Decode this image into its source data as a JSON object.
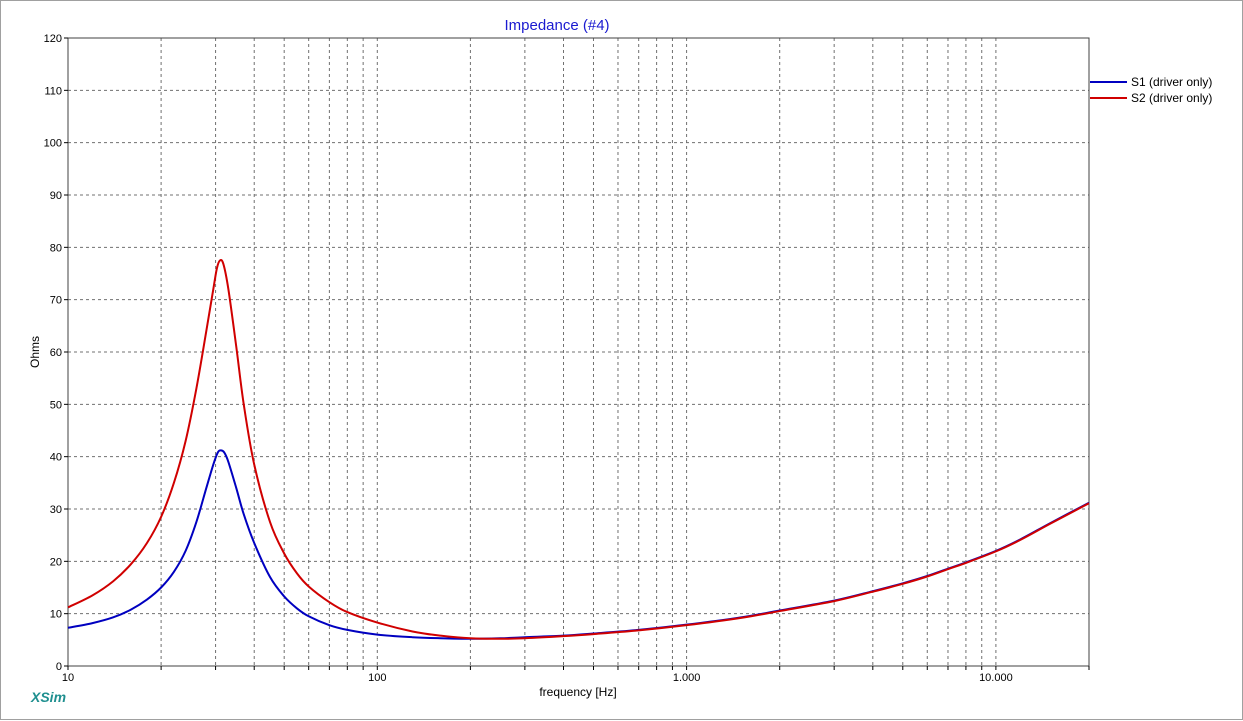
{
  "chart_data": {
    "type": "line",
    "title": "Impedance (#4)",
    "xlabel": "frequency [Hz]",
    "ylabel": "Ohms",
    "x_scale": "log",
    "xlim": [
      10,
      20000
    ],
    "ylim": [
      0,
      120
    ],
    "y_ticks": [
      0,
      10,
      20,
      30,
      40,
      50,
      60,
      70,
      80,
      90,
      100,
      110,
      120
    ],
    "x_tick_labels": [
      {
        "value": 10,
        "label": "10"
      },
      {
        "value": 100,
        "label": "100"
      },
      {
        "value": 1000,
        "label": "1.000"
      },
      {
        "value": 10000,
        "label": "10.000"
      }
    ],
    "grid": true,
    "legend_position": "top-right",
    "series": [
      {
        "name": "S1 (driver only)",
        "color": "#0000c0",
        "points": [
          [
            10,
            7.3
          ],
          [
            12,
            8.2
          ],
          [
            14,
            9.3
          ],
          [
            16,
            10.8
          ],
          [
            18,
            12.7
          ],
          [
            20,
            15.0
          ],
          [
            22,
            18.0
          ],
          [
            24,
            22.0
          ],
          [
            26,
            27.5
          ],
          [
            28,
            34.0
          ],
          [
            29.5,
            38.5
          ],
          [
            30.5,
            40.8
          ],
          [
            31.2,
            41.2
          ],
          [
            32,
            40.8
          ],
          [
            33,
            39.0
          ],
          [
            35,
            34.0
          ],
          [
            37,
            29.0
          ],
          [
            40,
            23.5
          ],
          [
            45,
            17.0
          ],
          [
            50,
            13.3
          ],
          [
            55,
            11.0
          ],
          [
            60,
            9.5
          ],
          [
            70,
            7.8
          ],
          [
            80,
            6.9
          ],
          [
            100,
            6.0
          ],
          [
            130,
            5.5
          ],
          [
            160,
            5.3
          ],
          [
            200,
            5.2
          ],
          [
            250,
            5.3
          ],
          [
            300,
            5.5
          ],
          [
            400,
            5.8
          ],
          [
            500,
            6.2
          ],
          [
            700,
            6.9
          ],
          [
            1000,
            7.9
          ],
          [
            1500,
            9.3
          ],
          [
            2000,
            10.6
          ],
          [
            3000,
            12.5
          ],
          [
            4000,
            14.3
          ],
          [
            5000,
            15.8
          ],
          [
            6000,
            17.2
          ],
          [
            7000,
            18.6
          ],
          [
            8000,
            19.8
          ],
          [
            10000,
            22.0
          ],
          [
            12000,
            24.2
          ],
          [
            15000,
            27.3
          ],
          [
            20000,
            31.2
          ]
        ]
      },
      {
        "name": "S2 (driver only)",
        "color": "#d00000",
        "points": [
          [
            10,
            11.2
          ],
          [
            12,
            13.5
          ],
          [
            14,
            16.2
          ],
          [
            16,
            19.5
          ],
          [
            18,
            23.5
          ],
          [
            20,
            28.5
          ],
          [
            22,
            35.0
          ],
          [
            24,
            43.0
          ],
          [
            26,
            53.0
          ],
          [
            28,
            64.0
          ],
          [
            29.5,
            72.0
          ],
          [
            30.3,
            76.0
          ],
          [
            31,
            77.5
          ],
          [
            31.8,
            76.8
          ],
          [
            33,
            72.0
          ],
          [
            35,
            61.0
          ],
          [
            37,
            50.0
          ],
          [
            40,
            38.5
          ],
          [
            45,
            27.5
          ],
          [
            50,
            21.5
          ],
          [
            55,
            17.7
          ],
          [
            60,
            15.2
          ],
          [
            70,
            12.2
          ],
          [
            80,
            10.3
          ],
          [
            100,
            8.3
          ],
          [
            130,
            6.6
          ],
          [
            160,
            5.8
          ],
          [
            200,
            5.3
          ],
          [
            250,
            5.2
          ],
          [
            300,
            5.3
          ],
          [
            400,
            5.7
          ],
          [
            500,
            6.1
          ],
          [
            700,
            6.8
          ],
          [
            1000,
            7.8
          ],
          [
            1500,
            9.2
          ],
          [
            2000,
            10.5
          ],
          [
            3000,
            12.4
          ],
          [
            4000,
            14.2
          ],
          [
            5000,
            15.7
          ],
          [
            6000,
            17.1
          ],
          [
            7000,
            18.5
          ],
          [
            8000,
            19.7
          ],
          [
            10000,
            21.9
          ],
          [
            12000,
            24.1
          ],
          [
            15000,
            27.2
          ],
          [
            20000,
            31.1
          ]
        ]
      }
    ]
  },
  "brand": "XSim"
}
